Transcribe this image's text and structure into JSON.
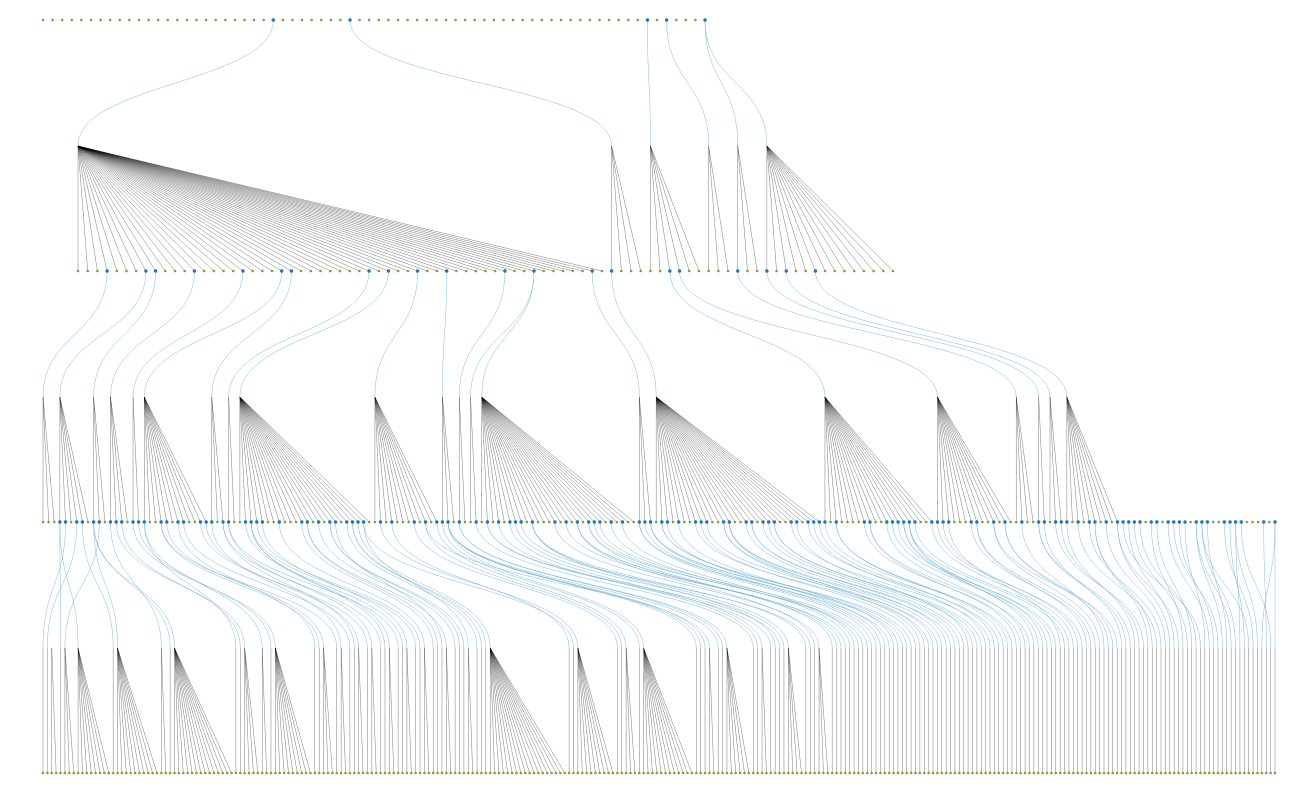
{
  "diagram": {
    "kind": "hierarchy",
    "levels": 5,
    "level_node_counts": [
      70,
      85,
      220,
      282,
      282
    ],
    "colors": {
      "background": "#ffffff",
      "tree_edge": "#000000",
      "cross_edge": "#6aaed6",
      "leaf_node": "#8a9a3c",
      "internal_node": "#1f78b4"
    }
  }
}
